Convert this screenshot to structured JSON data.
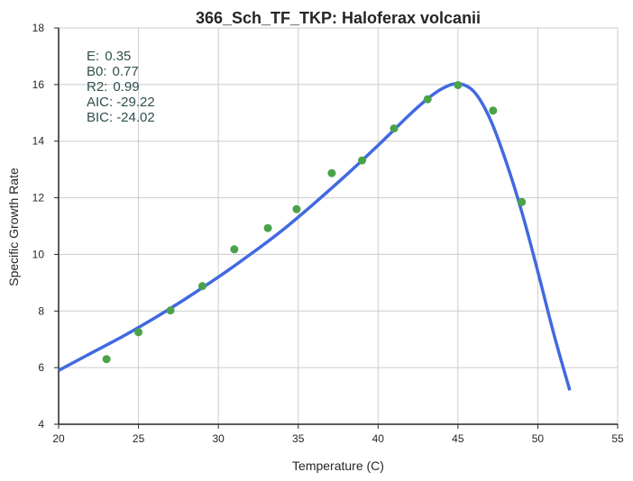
{
  "chart_data": {
    "type": "scatter",
    "title": "366_Sch_TF_TKP: Haloferax volcanii",
    "xlabel": "Temperature (C)",
    "ylabel": "Specific Growth Rate",
    "xlim": [
      20,
      55
    ],
    "ylim": [
      4,
      18
    ],
    "xticks": [
      "20",
      "25",
      "30",
      "35",
      "40",
      "45",
      "50",
      "55"
    ],
    "yticks": [
      "4",
      "6",
      "8",
      "10",
      "12",
      "14",
      "16",
      "18"
    ],
    "grid": true,
    "colors": {
      "points": "#4aa34a",
      "curve": "#4169e1",
      "grid": "#cccccc",
      "axis": "#262626"
    },
    "series": [
      {
        "kind": "points",
        "x": [
          23.0,
          25.0,
          27.0,
          29.0,
          31.0,
          33.1,
          34.9,
          37.1,
          39.0,
          41.0,
          43.1,
          45.0,
          47.2,
          49.0
        ],
        "y": [
          6.3,
          7.25,
          8.02,
          8.88,
          10.18,
          10.93,
          11.6,
          12.87,
          13.32,
          14.45,
          15.48,
          15.98,
          15.08,
          11.85
        ]
      },
      {
        "kind": "curve",
        "x": [
          20,
          22,
          24,
          26,
          28,
          30,
          32,
          34,
          36,
          38,
          40,
          42,
          43,
          44,
          45,
          46,
          47,
          48,
          49,
          50,
          51,
          52
        ],
        "y": [
          5.9,
          6.5,
          7.1,
          7.75,
          8.45,
          9.2,
          10.0,
          10.85,
          11.8,
          12.8,
          13.85,
          14.95,
          15.45,
          15.85,
          16.03,
          15.75,
          14.8,
          13.3,
          11.5,
          9.4,
          7.2,
          5.2
        ]
      }
    ],
    "annotations": [
      {
        "label": "E:",
        "value": "0.35"
      },
      {
        "label": "B0:",
        "value": "0.77"
      },
      {
        "label": "R2:",
        "value": "0.99"
      },
      {
        "label": "AIC:",
        "value": "-29.22"
      },
      {
        "label": "BIC:",
        "value": "-24.02"
      }
    ]
  }
}
